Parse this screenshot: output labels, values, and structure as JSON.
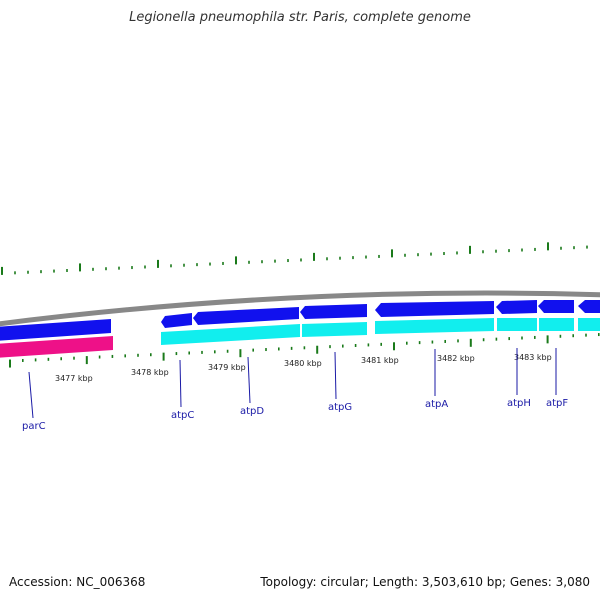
{
  "title": "Legionella pneumophila str. Paris, complete genome",
  "footer": {
    "accession": "Accession: NC_006368",
    "summary": "Topology: circular; Length: 3,503,610 bp; Genes: 3,080"
  },
  "colors": {
    "backbone": "#888888",
    "forward_gene": "#1111ee",
    "reverse_gene": "#11eeee",
    "rna": "#ee1188",
    "ticks": "#1a7a1a",
    "gene_label": "#1a1aa6"
  },
  "scale_labels": [
    "3477 kbp",
    "3478 kbp",
    "3479 kbp",
    "3480 kbp",
    "3481 kbp",
    "3482 kbp",
    "3483 kbp"
  ],
  "genes": [
    "parC",
    "atpC",
    "atpD",
    "atpG",
    "atpA",
    "atpH",
    "atpF"
  ]
}
